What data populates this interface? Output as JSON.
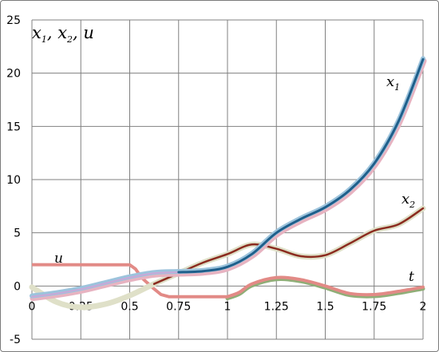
{
  "chart_data": {
    "type": "line",
    "title": "x₁, x₂, u",
    "xlim": [
      0,
      2
    ],
    "ylim": [
      -5,
      25
    ],
    "grid": true,
    "x_ticks": [
      "0",
      "0.25",
      "0.5",
      "0.75",
      "1",
      "1.25",
      "1.5",
      "1.75",
      "2"
    ],
    "y_ticks": [
      "-5",
      "0",
      "5",
      "10",
      "15",
      "20",
      "25"
    ],
    "x_tick_values": [
      0,
      0.25,
      0.5,
      0.75,
      1,
      1.25,
      1.5,
      1.75,
      2
    ],
    "y_tick_values": [
      -5,
      0,
      5,
      10,
      15,
      20,
      25
    ],
    "annotations": {
      "title_part1": "x",
      "title_sub1": "1",
      "title_mid": ", x",
      "title_sub2": "2",
      "title_end": ", u",
      "label_x1": "x",
      "label_x1_sub": "1",
      "label_x2": "x",
      "label_x2_sub": "2",
      "label_u": "u",
      "label_t": "t"
    },
    "colors": {
      "x1_band": "#9cc3dc",
      "x1_band2": "#e7b3c1",
      "x1": "#1f5f8b",
      "x2_band": "#dfe0c8",
      "x2": "#8b2b1f",
      "u": "#e28a86",
      "t_curve": "#e28a86",
      "t_curve_under": "#8fae77",
      "x1_early": "#c8a8d8",
      "grid": "#808080"
    },
    "series": [
      {
        "key": "x1",
        "values": [
          [
            0,
            -1
          ],
          [
            0.125,
            -0.7
          ],
          [
            0.25,
            -0.3
          ],
          [
            0.375,
            0.25
          ],
          [
            0.5,
            0.8
          ],
          [
            0.625,
            1.2
          ],
          [
            0.75,
            1.3
          ],
          [
            0.875,
            1.4
          ],
          [
            1,
            1.8
          ],
          [
            1.125,
            3
          ],
          [
            1.25,
            5
          ],
          [
            1.375,
            6.3
          ],
          [
            1.5,
            7.4
          ],
          [
            1.625,
            9
          ],
          [
            1.75,
            11.5
          ],
          [
            1.875,
            15.5
          ],
          [
            2,
            21.3
          ]
        ]
      },
      {
        "key": "x2",
        "values": [
          [
            0,
            -0.1
          ],
          [
            0.125,
            -1.5
          ],
          [
            0.25,
            -2
          ],
          [
            0.375,
            -1.7
          ],
          [
            0.5,
            -0.9
          ],
          [
            0.625,
            0.2
          ],
          [
            0.75,
            1.2
          ],
          [
            0.875,
            2.2
          ],
          [
            1,
            3
          ],
          [
            1.125,
            3.9
          ],
          [
            1.25,
            3.5
          ],
          [
            1.375,
            2.8
          ],
          [
            1.5,
            2.9
          ],
          [
            1.625,
            4
          ],
          [
            1.75,
            5.2
          ],
          [
            1.875,
            5.8
          ],
          [
            2,
            7.3
          ]
        ]
      },
      {
        "key": "u",
        "values": [
          [
            0,
            2
          ],
          [
            0.5,
            2
          ],
          [
            0.53,
            1.6
          ],
          [
            0.56,
            0.8
          ],
          [
            0.62,
            -0.2
          ],
          [
            0.66,
            -0.8
          ],
          [
            0.7,
            -1
          ],
          [
            0.75,
            -1
          ],
          [
            1,
            -1
          ]
        ]
      },
      {
        "key": "t_curve",
        "values": [
          [
            1,
            -1
          ],
          [
            1.06,
            -0.6
          ],
          [
            1.125,
            0.2
          ],
          [
            1.25,
            0.8
          ],
          [
            1.375,
            0.6
          ],
          [
            1.5,
            0
          ],
          [
            1.625,
            -0.7
          ],
          [
            1.75,
            -0.8
          ],
          [
            1.875,
            -0.5
          ],
          [
            2,
            -0.1
          ]
        ]
      }
    ]
  }
}
